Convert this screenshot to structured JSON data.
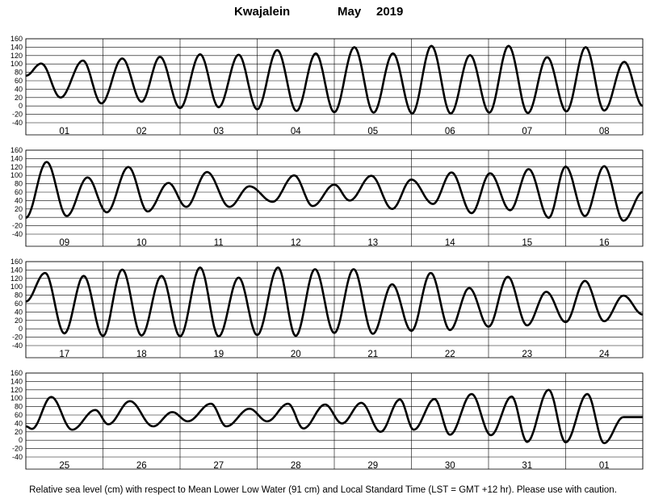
{
  "header": {
    "station": "Kwajalein",
    "month": "May",
    "year": "2019"
  },
  "footer": {
    "caption": "Relative sea level (cm) with respect to Mean Lower Low Water (91 cm) and Local Standard Time (LST = GMT +12 hr). Please use with caution."
  },
  "chart_data": {
    "type": "line",
    "title": "Kwajalein May 2019",
    "ylabel": "Relative sea level (cm)",
    "ylim": [
      -40,
      160
    ],
    "yticks": [
      -40,
      -20,
      0,
      20,
      40,
      60,
      80,
      100,
      120,
      140,
      160
    ],
    "grid": true,
    "panels": [
      {
        "days": [
          "01",
          "02",
          "03",
          "04",
          "05",
          "06",
          "07",
          "08"
        ],
        "series": [
          {
            "x_day": [
              0,
              0.2,
              0.45,
              0.74,
              0.98,
              1.25,
              1.5,
              1.74,
              2.0,
              2.26,
              2.5,
              2.76,
              3.0,
              3.26,
              3.51,
              3.76,
              4.0,
              4.26,
              4.51,
              4.76,
              5.01,
              5.26,
              5.51,
              5.76,
              6.01,
              6.26,
              6.51,
              6.76,
              7.01,
              7.26,
              7.5,
              7.76,
              8.0
            ],
            "y": [
              72,
              101,
              20,
              108,
              6,
              113,
              10,
              117,
              -5,
              123,
              -3,
              122,
              -8,
              133,
              -12,
              125,
              -15,
              140,
              -16,
              125,
              -18,
              143,
              -18,
              121,
              -16,
              143,
              -17,
              116,
              -13,
              140,
              -11,
              105,
              0
            ]
          }
        ]
      },
      {
        "days": [
          "09",
          "10",
          "11",
          "12",
          "13",
          "14",
          "15",
          "16"
        ],
        "series": [
          {
            "x_day": [
              0,
              0.27,
              0.53,
              0.8,
              1.05,
              1.33,
              1.58,
              1.85,
              2.08,
              2.35,
              2.64,
              2.9,
              3.2,
              3.48,
              3.72,
              4.0,
              4.2,
              4.48,
              4.75,
              5.0,
              5.28,
              5.52,
              5.78,
              6.02,
              6.28,
              6.52,
              6.78,
              7.0,
              7.25,
              7.5,
              7.75,
              8.0
            ],
            "y": [
              -1,
              132,
              3,
              95,
              12,
              120,
              14,
              82,
              25,
              108,
              25,
              74,
              37,
              100,
              27,
              78,
              40,
              99,
              20,
              90,
              32,
              107,
              10,
              105,
              17,
              115,
              -1,
              121,
              3,
              122,
              -8,
              60
            ]
          }
        ]
      },
      {
        "days": [
          "17",
          "18",
          "19",
          "20",
          "21",
          "22",
          "23",
          "24"
        ],
        "series": [
          {
            "x_day": [
              0,
              0.25,
              0.5,
              0.75,
              1.0,
              1.25,
              1.5,
              1.76,
              2.0,
              2.26,
              2.5,
              2.76,
              3.0,
              3.27,
              3.5,
              3.75,
              4.0,
              4.25,
              4.5,
              4.75,
              5.0,
              5.25,
              5.5,
              5.75,
              6.0,
              6.25,
              6.5,
              6.75,
              7.0,
              7.25,
              7.5,
              7.75,
              8.0
            ],
            "y": [
              65,
              133,
              -11,
              126,
              -17,
              141,
              -16,
              126,
              -18,
              146,
              -18,
              122,
              -15,
              146,
              -17,
              142,
              -10,
              142,
              -12,
              106,
              -5,
              133,
              -3,
              97,
              5,
              124,
              8,
              88,
              16,
              114,
              18,
              79,
              34
            ]
          }
        ]
      },
      {
        "days": [
          "25",
          "26",
          "27",
          "28",
          "29",
          "30",
          "31",
          "01"
        ],
        "series": [
          {
            "x_day": [
              0,
              0.08,
              0.33,
              0.6,
              0.9,
              1.07,
              1.35,
              1.65,
              1.9,
              2.1,
              2.4,
              2.6,
              2.9,
              3.13,
              3.4,
              3.6,
              3.88,
              4.1,
              4.35,
              4.6,
              4.85,
              5.03,
              5.3,
              5.5,
              5.78,
              6.03,
              6.3,
              6.5,
              6.78,
              7.0,
              7.28,
              7.5,
              7.75,
              8.0
            ],
            "y": [
              33,
              27,
              103,
              25,
              72,
              38,
              93,
              33,
              67,
              45,
              87,
              33,
              75,
              45,
              87,
              28,
              85,
              40,
              89,
              20,
              97,
              25,
              98,
              13,
              110,
              12,
              104,
              -4,
              120,
              -5,
              110,
              -7,
              55,
              55
            ]
          }
        ]
      }
    ]
  }
}
